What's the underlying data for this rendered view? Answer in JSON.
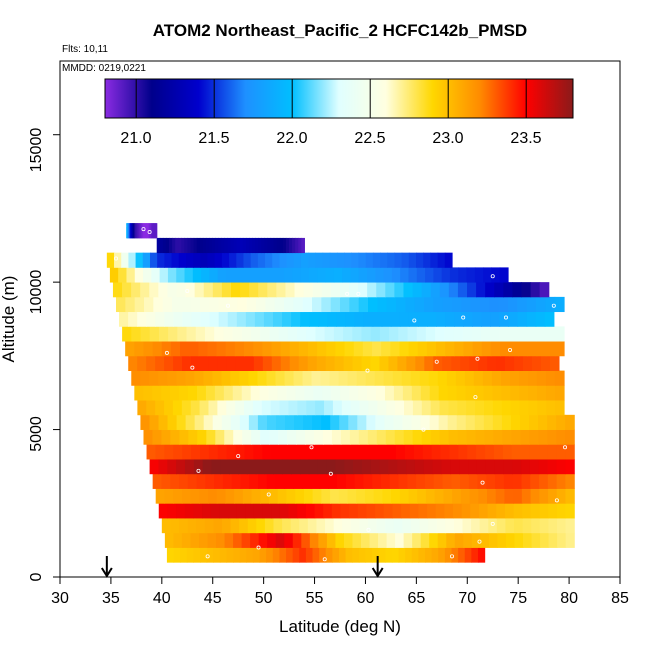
{
  "chart_data": {
    "type": "heatmap",
    "title": "ATOM2 Northeast_Pacific_2 HCFC142b_PMSD",
    "subtitle_flights": "Flts: 10,11",
    "subtitle_dates": "MMDD: 0219,0221",
    "xlabel": "Latitude (deg N)",
    "ylabel": "Altitude (m)",
    "xlim": [
      30,
      85
    ],
    "ylim": [
      0,
      17500
    ],
    "x_ticks": [
      "30",
      "35",
      "40",
      "45",
      "50",
      "55",
      "60",
      "65",
      "70",
      "75",
      "80",
      "85"
    ],
    "y_ticks": [
      "0",
      "5000",
      "10000",
      "15000"
    ],
    "colorbar": {
      "range": [
        20.8,
        23.8
      ],
      "ticks": [
        "21.0",
        "21.5",
        "22.0",
        "22.5",
        "23.0",
        "23.5"
      ],
      "tick_values": [
        21.0,
        21.5,
        22.0,
        22.5,
        23.0,
        23.5
      ],
      "colors": [
        "#8a2be2",
        "#00008b",
        "#0000cd",
        "#1e90ff",
        "#00bfff",
        "#e0ffff",
        "#ffffe0",
        "#ffd700",
        "#ff8c00",
        "#ff0000",
        "#8b1a1a"
      ]
    },
    "arrows_latitude": [
      34.6,
      61.2
    ],
    "layers": [
      {
        "alt": [
          500,
          1000
        ],
        "lat": [
          40.5,
          71.7
        ],
        "values": [
          22.9,
          23.0,
          23.1,
          23.4,
          23.0,
          22.9,
          23.1,
          23.5
        ]
      },
      {
        "alt": [
          1000,
          1500
        ],
        "lat": [
          40.3,
          80.5
        ],
        "values": [
          23.0,
          23.2,
          23.6,
          22.9,
          22.6,
          23.1,
          22.9,
          22.7
        ]
      },
      {
        "alt": [
          1500,
          2000
        ],
        "lat": [
          40.0,
          80.5
        ],
        "values": [
          23.0,
          23.1,
          22.8,
          22.6,
          22.4,
          22.6,
          22.8,
          22.7
        ]
      },
      {
        "alt": [
          2000,
          2500
        ],
        "lat": [
          39.7,
          80.5
        ],
        "values": [
          23.5,
          23.6,
          23.6,
          23.4,
          23.3,
          23.2,
          23.0,
          22.9
        ]
      },
      {
        "alt": [
          2500,
          3000
        ],
        "lat": [
          39.4,
          80.5
        ],
        "values": [
          23.1,
          23.2,
          23.0,
          22.8,
          22.9,
          23.1,
          23.3,
          23.0
        ]
      },
      {
        "alt": [
          3000,
          3500
        ],
        "lat": [
          39.1,
          80.5
        ],
        "values": [
          23.3,
          23.4,
          23.5,
          23.5,
          23.4,
          23.3,
          23.4,
          23.2
        ]
      },
      {
        "alt": [
          3500,
          4000
        ],
        "lat": [
          38.8,
          80.5
        ],
        "values": [
          23.5,
          23.8,
          23.8,
          23.8,
          23.7,
          23.6,
          23.6,
          23.5
        ]
      },
      {
        "alt": [
          4000,
          4500
        ],
        "lat": [
          38.5,
          80.5
        ],
        "values": [
          23.3,
          23.4,
          23.5,
          23.5,
          23.5,
          23.4,
          23.3,
          23.3
        ]
      },
      {
        "alt": [
          4500,
          5000
        ],
        "lat": [
          38.2,
          80.5
        ],
        "values": [
          23.2,
          22.9,
          22.3,
          22.6,
          22.8,
          23.0,
          23.1,
          23.2
        ]
      },
      {
        "alt": [
          5000,
          5500
        ],
        "lat": [
          37.9,
          80.5
        ],
        "values": [
          23.2,
          22.7,
          22.1,
          22.0,
          22.4,
          22.7,
          22.9,
          23.1
        ]
      },
      {
        "alt": [
          5500,
          6000
        ],
        "lat": [
          37.6,
          79.5
        ],
        "values": [
          23.1,
          22.8,
          22.3,
          22.2,
          22.5,
          22.8,
          22.9,
          23.0
        ]
      },
      {
        "alt": [
          6000,
          6500
        ],
        "lat": [
          37.3,
          79.5
        ],
        "values": [
          23.0,
          22.9,
          22.6,
          22.4,
          22.6,
          22.9,
          23.0,
          23.1
        ]
      },
      {
        "alt": [
          6500,
          7000
        ],
        "lat": [
          37.0,
          79.5
        ],
        "values": [
          23.2,
          23.1,
          22.9,
          22.7,
          22.8,
          22.9,
          23.1,
          23.2
        ]
      },
      {
        "alt": [
          7000,
          7500
        ],
        "lat": [
          36.7,
          79.0
        ],
        "values": [
          23.2,
          23.4,
          23.4,
          23.1,
          22.9,
          23.3,
          23.4,
          23.3
        ]
      },
      {
        "alt": [
          7500,
          8000
        ],
        "lat": [
          36.4,
          79.5
        ],
        "values": [
          23.1,
          23.3,
          23.2,
          23.0,
          22.8,
          23.0,
          23.2,
          23.2
        ]
      },
      {
        "alt": [
          8000,
          8500
        ],
        "lat": [
          36.1,
          79.5
        ],
        "values": [
          22.9,
          22.7,
          22.5,
          22.3,
          22.2,
          22.3,
          22.4,
          22.4
        ]
      },
      {
        "alt": [
          8500,
          9000
        ],
        "lat": [
          35.8,
          78.5
        ],
        "values": [
          22.7,
          22.4,
          22.2,
          22.0,
          21.9,
          21.9,
          21.8,
          22.0
        ]
      },
      {
        "alt": [
          9000,
          9500
        ],
        "lat": [
          35.5,
          79.5
        ],
        "values": [
          22.8,
          22.5,
          22.6,
          22.3,
          22.0,
          21.8,
          21.7,
          21.9
        ]
      },
      {
        "alt": [
          9500,
          10000
        ],
        "lat": [
          35.2,
          78.0
        ],
        "values": [
          22.9,
          22.5,
          22.9,
          22.6,
          22.3,
          21.9,
          21.4,
          20.9
        ]
      },
      {
        "alt": [
          10000,
          10500
        ],
        "lat": [
          34.9,
          74.0
        ],
        "values": [
          23.0,
          22.2,
          21.8,
          21.8,
          21.9,
          21.7,
          21.5,
          21.4
        ]
      },
      {
        "alt": [
          10500,
          11000
        ],
        "lat": [
          34.6,
          68.5
        ],
        "values": [
          23.0,
          21.5,
          21.3,
          21.6,
          21.8,
          21.7,
          21.6,
          21.4
        ]
      },
      {
        "alt": [
          11000,
          11500
        ],
        "lat": [
          39.5,
          54.0
        ],
        "values": [
          21.2,
          21.0,
          21.1,
          21.2,
          21.3,
          21.2,
          21.1,
          20.9
        ]
      },
      {
        "alt": [
          11500,
          12000
        ],
        "lat": [
          36.5,
          39.5
        ],
        "values": [
          22.0,
          21.4,
          21.0,
          20.9,
          20.8,
          20.8,
          20.9,
          20.9
        ]
      }
    ],
    "points": [
      [
        40.5,
        300
      ],
      [
        44.5,
        700
      ],
      [
        49.5,
        1000
      ],
      [
        56,
        600
      ],
      [
        68.5,
        700
      ],
      [
        71.2,
        1200
      ],
      [
        72.5,
        1800
      ],
      [
        78.8,
        2600
      ],
      [
        60.3,
        1600
      ],
      [
        50.5,
        2800
      ],
      [
        71.5,
        3200
      ],
      [
        47.5,
        4100
      ],
      [
        43.6,
        3600
      ],
      [
        56.6,
        3500
      ],
      [
        54.7,
        4400
      ],
      [
        79.6,
        4400
      ],
      [
        65.7,
        5000
      ],
      [
        70.8,
        6100
      ],
      [
        43.0,
        7100
      ],
      [
        60.2,
        7000
      ],
      [
        67.0,
        7300
      ],
      [
        71.0,
        7400
      ],
      [
        40.5,
        7600
      ],
      [
        74.2,
        7700
      ],
      [
        69.6,
        8800
      ],
      [
        46.5,
        9200
      ],
      [
        64.8,
        8700
      ],
      [
        73.8,
        8800
      ],
      [
        78.5,
        9200
      ],
      [
        58.2,
        9600
      ],
      [
        59.3,
        9600
      ],
      [
        72.5,
        10200
      ],
      [
        42.5,
        9700
      ],
      [
        68.8,
        10700
      ],
      [
        35.5,
        10800
      ],
      [
        36.3,
        11900
      ],
      [
        38.2,
        11800
      ],
      [
        38.8,
        11700
      ]
    ]
  }
}
